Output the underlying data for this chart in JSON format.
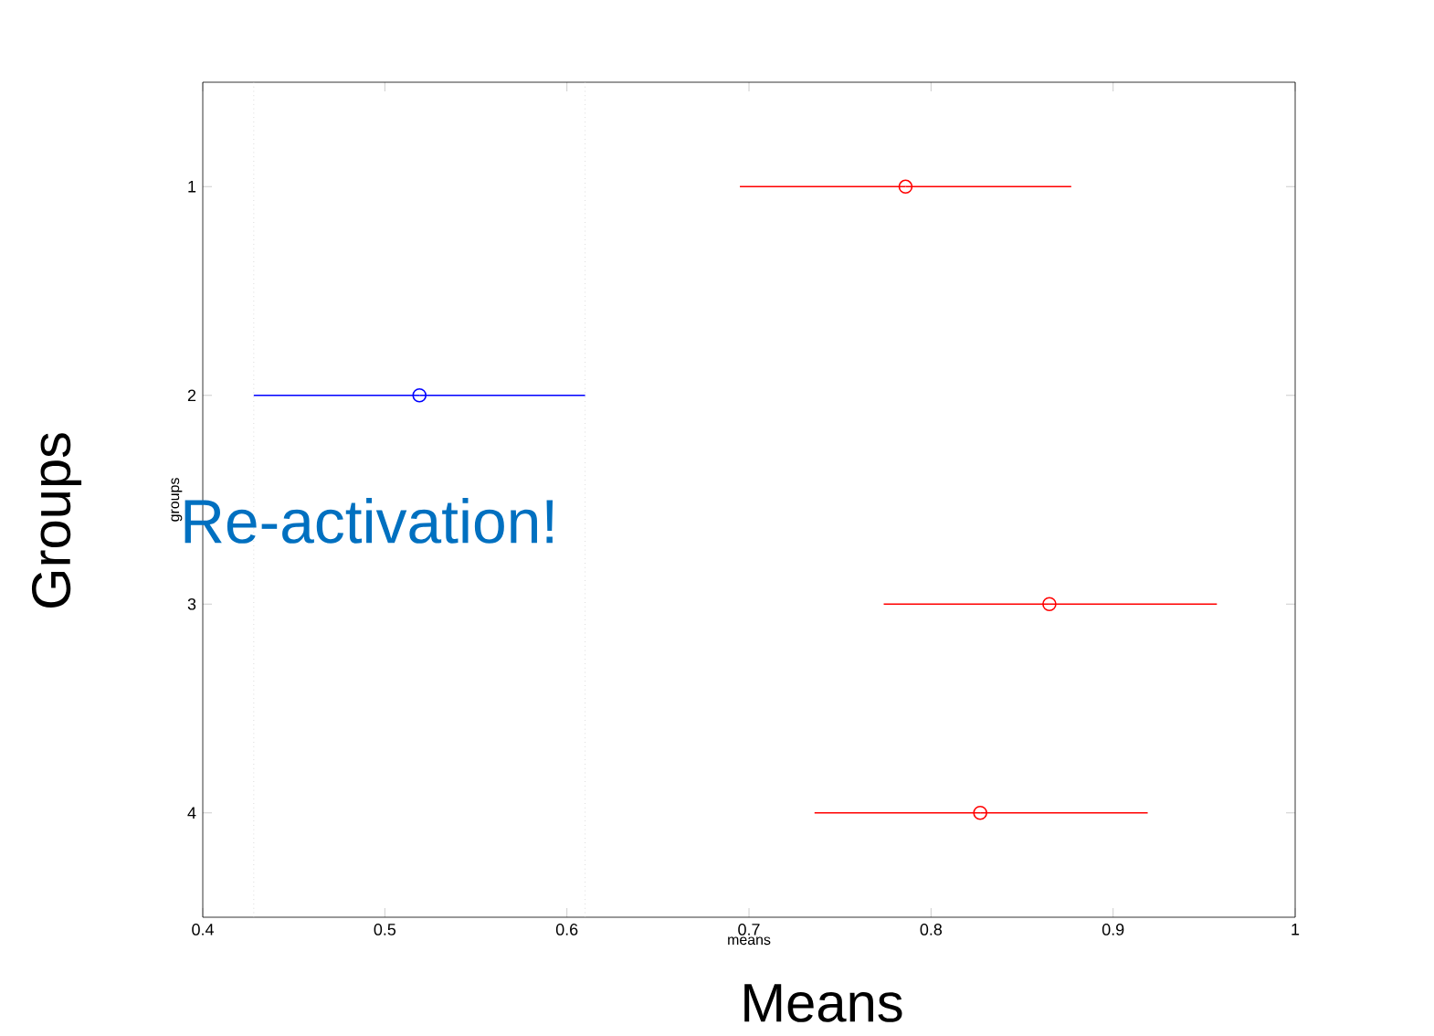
{
  "chart_data": {
    "type": "scatter",
    "orientation": "horizontal",
    "xlabel": "means",
    "ylabel": "groups",
    "categories": [
      "1",
      "2",
      "3",
      "4"
    ],
    "values": [
      0.786,
      0.519,
      0.865,
      0.827
    ],
    "errors": [
      [
        0.695,
        0.877
      ],
      [
        0.428,
        0.61
      ],
      [
        0.774,
        0.957
      ],
      [
        0.736,
        0.919
      ]
    ],
    "colors": [
      "#ff0000",
      "#0000ff",
      "#ff0000",
      "#ff0000"
    ],
    "marker": "circle",
    "line_style": "solid",
    "xlim": [
      0.4,
      1
    ],
    "xticks": [
      0.4,
      0.5,
      0.6,
      0.7,
      0.8,
      0.9,
      1
    ],
    "ref_lines": [
      {
        "axis": "x",
        "value": 0.428,
        "color": "#c8c8c8",
        "line_style": "dotted"
      },
      {
        "axis": "x",
        "value": 0.61,
        "color": "#c8c8c8",
        "line_style": "dotted"
      }
    ],
    "annotations": [
      "Re-activation!",
      "Groups",
      "Means"
    ]
  }
}
